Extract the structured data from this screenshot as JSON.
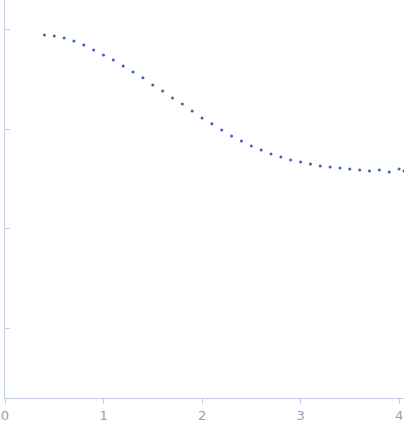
{
  "chart_data": {
    "type": "scatter",
    "x": [
      0.4,
      0.5,
      0.6,
      0.7,
      0.8,
      0.9,
      1.0,
      1.1,
      1.2,
      1.3,
      1.4,
      1.5,
      1.6,
      1.7,
      1.8,
      1.9,
      2.0,
      2.1,
      2.2,
      2.3,
      2.4,
      2.5,
      2.6,
      2.7,
      2.8,
      2.9,
      3.0,
      3.1,
      3.2,
      3.3,
      3.4,
      3.5,
      3.6,
      3.7,
      3.8,
      3.9,
      4.0,
      4.05
    ],
    "values": [
      0.891,
      0.871,
      0.831,
      0.775,
      0.707,
      0.63,
      0.561,
      0.499,
      0.435,
      0.378,
      0.33,
      0.28,
      0.244,
      0.207,
      0.18,
      0.153,
      0.13,
      0.114,
      0.0989,
      0.0861,
      0.0766,
      0.0682,
      0.0622,
      0.0567,
      0.0529,
      0.0494,
      0.0471,
      0.045,
      0.043,
      0.042,
      0.041,
      0.0401,
      0.0392,
      0.0383,
      0.0392,
      0.0374,
      0.0401,
      0.0383
    ],
    "color": "#3b64b8",
    "marker": "circle",
    "xlim": [
      0,
      4.05
    ],
    "xticks": [
      0,
      1,
      2,
      3,
      4
    ],
    "ylim": [
      0.0002,
      2
    ],
    "yticks": [
      0.001,
      0.01,
      0.1,
      1
    ],
    "log": "y",
    "grid": false,
    "tick_labels": "x"
  }
}
